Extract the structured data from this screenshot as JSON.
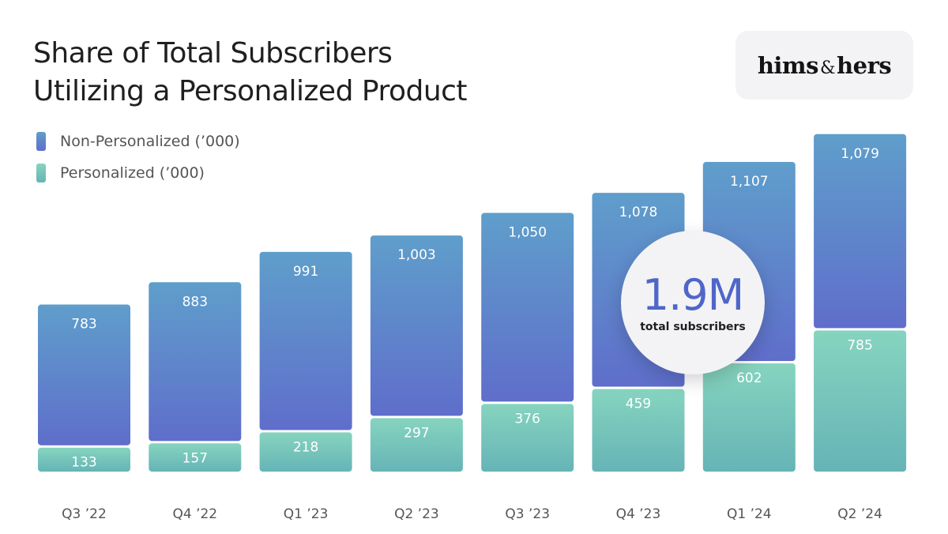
{
  "title_line1": "Share of Total Subscribers",
  "title_line2": "Utilizing a Personalized Product",
  "logo": {
    "part1": "hims",
    "amp": "&",
    "part2": "hers"
  },
  "badge": {
    "value": "1.9M",
    "label": "total subscribers"
  },
  "colors": {
    "non_personalized_top": "#5f9ecb",
    "non_personalized_bottom": "#5f6ecb",
    "personalized_top": "#86d4bf",
    "personalized_bottom": "#66b4b6"
  },
  "chart_data": {
    "type": "bar",
    "stacked": true,
    "categories": [
      "Q3 ’22",
      "Q4 ’22",
      "Q1 ’23",
      "Q2 ’23",
      "Q3 ’23",
      "Q4 ’23",
      "Q1 ’24",
      "Q2 ’24"
    ],
    "series": [
      {
        "name": "Personalized (’000)",
        "values": [
          133,
          157,
          218,
          297,
          376,
          459,
          602,
          785
        ],
        "labels": [
          "133",
          "157",
          "218",
          "297",
          "376",
          "459",
          "602",
          "785"
        ]
      },
      {
        "name": "Non-Personalized (’000)",
        "values": [
          783,
          883,
          991,
          1003,
          1050,
          1078,
          1107,
          1079
        ],
        "labels": [
          "783",
          "883",
          "991",
          "1,003",
          "1,050",
          "1,078",
          "1,107",
          "1,079"
        ]
      }
    ],
    "legend": [
      "Non-Personalized (’000)",
      "Personalized (’000)"
    ],
    "legend_position": "top-left",
    "grid": false
  }
}
